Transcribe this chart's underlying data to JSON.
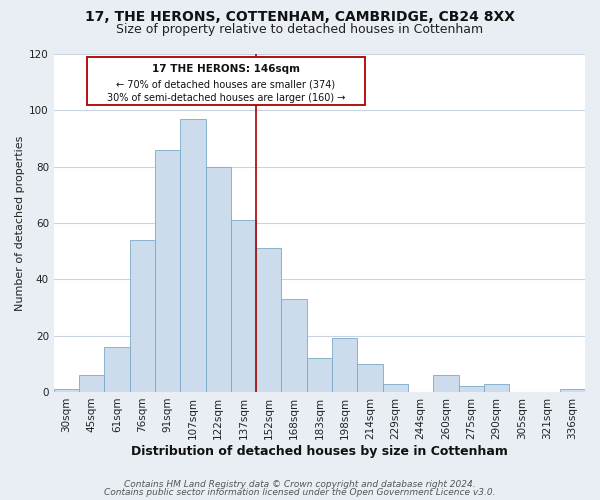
{
  "title": "17, THE HERONS, COTTENHAM, CAMBRIDGE, CB24 8XX",
  "subtitle": "Size of property relative to detached houses in Cottenham",
  "xlabel": "Distribution of detached houses by size in Cottenham",
  "ylabel": "Number of detached properties",
  "bar_labels": [
    "30sqm",
    "45sqm",
    "61sqm",
    "76sqm",
    "91sqm",
    "107sqm",
    "122sqm",
    "137sqm",
    "152sqm",
    "168sqm",
    "183sqm",
    "198sqm",
    "214sqm",
    "229sqm",
    "244sqm",
    "260sqm",
    "275sqm",
    "290sqm",
    "305sqm",
    "321sqm",
    "336sqm"
  ],
  "bar_heights": [
    1,
    6,
    16,
    54,
    86,
    97,
    80,
    61,
    51,
    33,
    12,
    19,
    10,
    3,
    0,
    6,
    2,
    3,
    0,
    0,
    1
  ],
  "bar_color": "#ccdcec",
  "bar_edgecolor": "#7aaac8",
  "ylim": [
    0,
    120
  ],
  "yticks": [
    0,
    20,
    40,
    60,
    80,
    100,
    120
  ],
  "property_line_x": 7.5,
  "property_line_color": "#aa0000",
  "annotation_title": "17 THE HERONS: 146sqm",
  "annotation_line1": "← 70% of detached houses are smaller (374)",
  "annotation_line2": "30% of semi-detached houses are larger (160) →",
  "annotation_box_edgecolor": "#aa0000",
  "annotation_box_facecolor": "#ffffff",
  "footer1": "Contains HM Land Registry data © Crown copyright and database right 2024.",
  "footer2": "Contains public sector information licensed under the Open Government Licence v3.0.",
  "background_color": "#e8eef4",
  "plot_background_color": "#ffffff",
  "grid_color": "#c8d4e0",
  "title_fontsize": 10,
  "subtitle_fontsize": 9,
  "xlabel_fontsize": 9,
  "ylabel_fontsize": 8,
  "tick_fontsize": 7.5,
  "footer_fontsize": 6.5
}
